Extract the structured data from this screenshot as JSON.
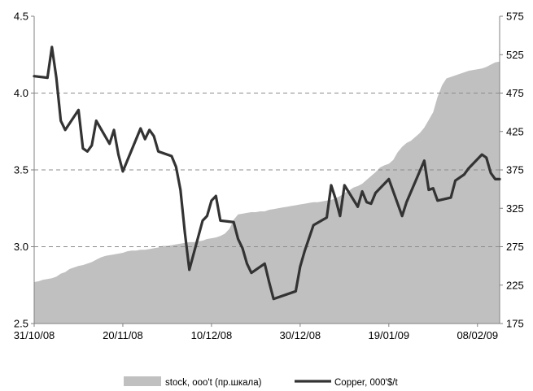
{
  "chart_data": {
    "type": "line",
    "title": "",
    "x_tick_labels": [
      "31/10/08",
      "20/11/08",
      "10/12/08",
      "30/12/08",
      "19/01/09",
      "08/02/09"
    ],
    "xlim": [
      "2008-10-31",
      "2009-02-13"
    ],
    "ylim_left": [
      2.5,
      4.5
    ],
    "y_ticks_left": [
      "2.5",
      "3.0",
      "3.5",
      "4.0",
      "4.5"
    ],
    "ylim_right": [
      175,
      575
    ],
    "y_ticks_right": [
      "175",
      "225",
      "275",
      "325",
      "375",
      "425",
      "475",
      "525",
      "575"
    ],
    "grid": "horizontal dashed",
    "legend_position": "bottom",
    "series": [
      {
        "name": "stock, ooo't (пр.шкала)",
        "type": "area",
        "axis": "right",
        "color": "#c0c0c0",
        "points": [
          [
            "2008-10-31",
            229
          ],
          [
            "2008-11-01",
            230
          ],
          [
            "2008-11-02",
            232
          ],
          [
            "2008-11-03",
            233
          ],
          [
            "2008-11-04",
            234
          ],
          [
            "2008-11-05",
            236
          ],
          [
            "2008-11-06",
            240
          ],
          [
            "2008-11-07",
            242
          ],
          [
            "2008-11-08",
            246
          ],
          [
            "2008-11-09",
            248
          ],
          [
            "2008-11-10",
            250
          ],
          [
            "2008-11-11",
            251
          ],
          [
            "2008-11-12",
            253
          ],
          [
            "2008-11-13",
            255
          ],
          [
            "2008-11-14",
            258
          ],
          [
            "2008-11-15",
            261
          ],
          [
            "2008-11-16",
            263
          ],
          [
            "2008-11-17",
            264
          ],
          [
            "2008-11-18",
            265
          ],
          [
            "2008-11-19",
            266
          ],
          [
            "2008-11-20",
            267
          ],
          [
            "2008-11-21",
            269
          ],
          [
            "2008-11-22",
            270
          ],
          [
            "2008-11-23",
            270
          ],
          [
            "2008-11-24",
            271
          ],
          [
            "2008-11-25",
            271
          ],
          [
            "2008-11-26",
            272
          ],
          [
            "2008-11-27",
            273
          ],
          [
            "2008-11-28",
            274
          ],
          [
            "2008-11-29",
            276
          ],
          [
            "2008-11-30",
            276
          ],
          [
            "2008-12-01",
            277
          ],
          [
            "2008-12-02",
            278
          ],
          [
            "2008-12-03",
            279
          ],
          [
            "2008-12-04",
            280
          ],
          [
            "2008-12-05",
            281
          ],
          [
            "2008-12-06",
            281
          ],
          [
            "2008-12-07",
            282
          ],
          [
            "2008-12-08",
            283
          ],
          [
            "2008-12-09",
            285
          ],
          [
            "2008-12-10",
            286
          ],
          [
            "2008-12-11",
            287
          ],
          [
            "2008-12-12",
            289
          ],
          [
            "2008-12-13",
            292
          ],
          [
            "2008-12-14",
            298
          ],
          [
            "2008-12-15",
            310
          ],
          [
            "2008-12-16",
            317
          ],
          [
            "2008-12-17",
            318
          ],
          [
            "2008-12-18",
            319
          ],
          [
            "2008-12-19",
            320
          ],
          [
            "2008-12-20",
            320
          ],
          [
            "2008-12-21",
            321
          ],
          [
            "2008-12-22",
            321
          ],
          [
            "2008-12-23",
            323
          ],
          [
            "2008-12-24",
            324
          ],
          [
            "2008-12-25",
            325
          ],
          [
            "2008-12-26",
            326
          ],
          [
            "2008-12-27",
            327
          ],
          [
            "2008-12-28",
            328
          ],
          [
            "2008-12-29",
            329
          ],
          [
            "2008-12-30",
            330
          ],
          [
            "2008-12-31",
            331
          ],
          [
            "2009-01-01",
            332
          ],
          [
            "2009-01-02",
            333
          ],
          [
            "2009-01-03",
            333
          ],
          [
            "2009-01-04",
            334
          ],
          [
            "2009-01-05",
            335
          ],
          [
            "2009-01-06",
            336
          ],
          [
            "2009-01-07",
            338
          ],
          [
            "2009-01-08",
            341
          ],
          [
            "2009-01-09",
            345
          ],
          [
            "2009-01-10",
            348
          ],
          [
            "2009-01-11",
            352
          ],
          [
            "2009-01-12",
            354
          ],
          [
            "2009-01-13",
            357
          ],
          [
            "2009-01-14",
            362
          ],
          [
            "2009-01-15",
            367
          ],
          [
            "2009-01-16",
            372
          ],
          [
            "2009-01-17",
            378
          ],
          [
            "2009-01-18",
            381
          ],
          [
            "2009-01-19",
            383
          ],
          [
            "2009-01-20",
            388
          ],
          [
            "2009-01-21",
            398
          ],
          [
            "2009-01-22",
            405
          ],
          [
            "2009-01-23",
            410
          ],
          [
            "2009-01-24",
            413
          ],
          [
            "2009-01-25",
            418
          ],
          [
            "2009-01-26",
            423
          ],
          [
            "2009-01-27",
            430
          ],
          [
            "2009-01-28",
            440
          ],
          [
            "2009-01-29",
            450
          ],
          [
            "2009-01-30",
            470
          ],
          [
            "2009-01-31",
            485
          ],
          [
            "2009-02-01",
            494
          ],
          [
            "2009-02-02",
            496
          ],
          [
            "2009-02-03",
            498
          ],
          [
            "2009-02-04",
            500
          ],
          [
            "2009-02-05",
            502
          ],
          [
            "2009-02-06",
            504
          ],
          [
            "2009-02-07",
            505
          ],
          [
            "2009-02-08",
            506
          ],
          [
            "2009-02-09",
            507
          ],
          [
            "2009-02-10",
            509
          ],
          [
            "2009-02-11",
            512
          ],
          [
            "2009-02-12",
            515
          ],
          [
            "2009-02-13",
            516
          ]
        ]
      },
      {
        "name": "Copper, 000'$/t",
        "type": "line",
        "axis": "left",
        "color": "#333333",
        "points": [
          [
            "2008-10-31",
            4.11
          ],
          [
            "2008-11-03",
            4.1
          ],
          [
            "2008-11-04",
            4.3
          ],
          [
            "2008-11-05",
            4.1
          ],
          [
            "2008-11-06",
            3.82
          ],
          [
            "2008-11-07",
            3.76
          ],
          [
            "2008-11-10",
            3.89
          ],
          [
            "2008-11-11",
            3.64
          ],
          [
            "2008-11-12",
            3.62
          ],
          [
            "2008-11-13",
            3.66
          ],
          [
            "2008-11-14",
            3.82
          ],
          [
            "2008-11-17",
            3.67
          ],
          [
            "2008-11-18",
            3.76
          ],
          [
            "2008-11-19",
            3.6
          ],
          [
            "2008-11-20",
            3.49
          ],
          [
            "2008-11-21",
            3.56
          ],
          [
            "2008-11-24",
            3.77
          ],
          [
            "2008-11-25",
            3.7
          ],
          [
            "2008-11-26",
            3.76
          ],
          [
            "2008-11-27",
            3.72
          ],
          [
            "2008-11-28",
            3.62
          ],
          [
            "2008-12-01",
            3.59
          ],
          [
            "2008-12-02",
            3.52
          ],
          [
            "2008-12-03",
            3.37
          ],
          [
            "2008-12-04",
            3.09
          ],
          [
            "2008-12-05",
            2.85
          ],
          [
            "2008-12-08",
            3.17
          ],
          [
            "2008-12-09",
            3.2
          ],
          [
            "2008-12-10",
            3.3
          ],
          [
            "2008-12-11",
            3.33
          ],
          [
            "2008-12-12",
            3.17
          ],
          [
            "2008-12-15",
            3.16
          ],
          [
            "2008-12-16",
            3.05
          ],
          [
            "2008-12-17",
            2.99
          ],
          [
            "2008-12-18",
            2.89
          ],
          [
            "2008-12-19",
            2.83
          ],
          [
            "2008-12-22",
            2.89
          ],
          [
            "2008-12-23",
            2.77
          ],
          [
            "2008-12-24",
            2.66
          ],
          [
            "2008-12-29",
            2.71
          ],
          [
            "2008-12-30",
            2.87
          ],
          [
            "2008-12-31",
            2.97
          ],
          [
            "2009-01-02",
            3.14
          ],
          [
            "2009-01-05",
            3.19
          ],
          [
            "2009-01-06",
            3.4
          ],
          [
            "2009-01-07",
            3.31
          ],
          [
            "2009-01-08",
            3.2
          ],
          [
            "2009-01-09",
            3.4
          ],
          [
            "2009-01-12",
            3.26
          ],
          [
            "2009-01-13",
            3.36
          ],
          [
            "2009-01-14",
            3.29
          ],
          [
            "2009-01-15",
            3.28
          ],
          [
            "2009-01-16",
            3.35
          ],
          [
            "2009-01-19",
            3.44
          ],
          [
            "2009-01-22",
            3.2
          ],
          [
            "2009-01-23",
            3.29
          ],
          [
            "2009-01-27",
            3.56
          ],
          [
            "2009-01-28",
            3.37
          ],
          [
            "2009-01-29",
            3.38
          ],
          [
            "2009-01-30",
            3.3
          ],
          [
            "2009-02-02",
            3.32
          ],
          [
            "2009-02-03",
            3.43
          ],
          [
            "2009-02-04",
            3.45
          ],
          [
            "2009-02-05",
            3.47
          ],
          [
            "2009-02-06",
            3.51
          ],
          [
            "2009-02-09",
            3.6
          ],
          [
            "2009-02-10",
            3.58
          ],
          [
            "2009-02-11",
            3.48
          ],
          [
            "2009-02-12",
            3.44
          ],
          [
            "2009-02-13",
            3.44
          ]
        ]
      }
    ]
  }
}
